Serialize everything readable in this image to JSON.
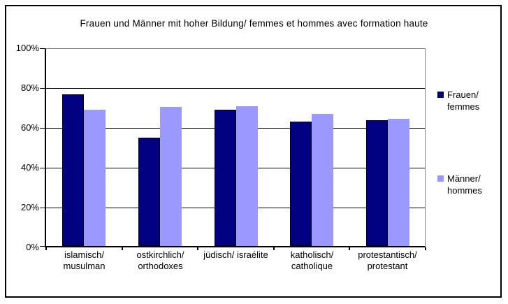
{
  "chart_data": {
    "type": "bar",
    "title": "Frauen und Männer mit hoher Bildung/ femmes et hommes avec formation haute",
    "categories": [
      {
        "label": "islamisch/ musulman",
        "lines": [
          "islamisch/",
          "musulman"
        ]
      },
      {
        "label": "ostkirchlich/ orthodoxes",
        "lines": [
          "ostkirchlich/",
          "orthodoxes"
        ]
      },
      {
        "label": "jüdisch/ israélite",
        "lines": [
          "jüdisch/ israélite"
        ]
      },
      {
        "label": "katholisch/ catholique",
        "lines": [
          "katholisch/",
          "catholique"
        ]
      },
      {
        "label": "protestantisch/ protestant",
        "lines": [
          "protestantisch/",
          "protestant"
        ]
      }
    ],
    "series": [
      {
        "name": "Frauen/ femmes",
        "lines": [
          "Frauen/",
          "femmes"
        ],
        "color": "#000080",
        "border": "#000000",
        "values": [
          77,
          55,
          69,
          63,
          64
        ]
      },
      {
        "name": "Männer/ hommes",
        "lines": [
          "Männer/",
          "hommes"
        ],
        "color": "#9999FF",
        "border": null,
        "values": [
          69,
          70.5,
          71,
          67,
          64.5
        ]
      }
    ],
    "y_axis": {
      "min": 0,
      "max": 100,
      "unit": "%",
      "ticks": [
        "0%",
        "20%",
        "40%",
        "60%",
        "80%",
        "100%"
      ]
    },
    "xlabel": "",
    "ylabel": "",
    "grid": true,
    "legend_position": "right",
    "colors": {
      "background": "#FFFFFF",
      "gridline": "#000000",
      "plot_border": "#808080",
      "axis": "#000000",
      "text": "#000000"
    }
  }
}
